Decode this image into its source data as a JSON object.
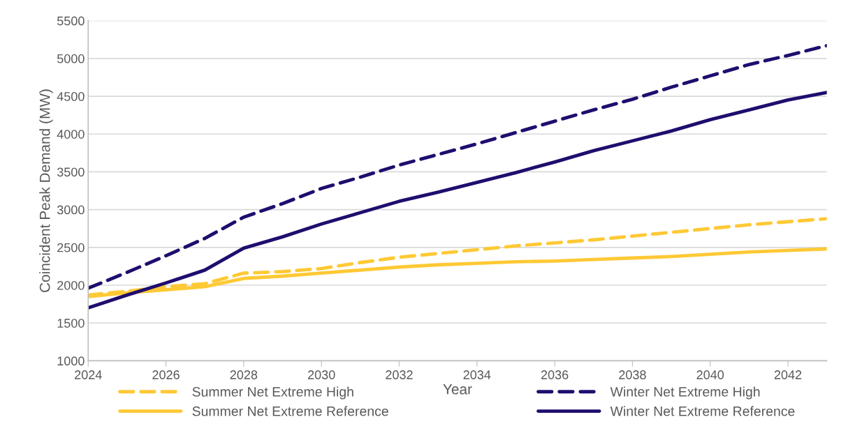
{
  "chart_data": {
    "type": "line",
    "xlabel": "Year",
    "ylabel": "Coincident Peak Demand (MW)",
    "x": [
      2024,
      2025,
      2026,
      2027,
      2028,
      2029,
      2030,
      2031,
      2032,
      2033,
      2034,
      2035,
      2036,
      2037,
      2038,
      2039,
      2040,
      2041,
      2042,
      2043
    ],
    "series": [
      {
        "name": "Summer Net Extreme High",
        "color": "#ffc935",
        "line_style": "dashed",
        "values": [
          1870,
          1920,
          1980,
          2020,
          2160,
          2180,
          2220,
          2300,
          2370,
          2420,
          2470,
          2520,
          2560,
          2600,
          2650,
          2700,
          2750,
          2800,
          2840,
          2880
        ]
      },
      {
        "name": "Summer Net Extreme Reference",
        "color": "#ffc935",
        "line_style": "solid",
        "values": [
          1850,
          1900,
          1940,
          1980,
          2090,
          2120,
          2160,
          2200,
          2240,
          2270,
          2290,
          2310,
          2320,
          2340,
          2360,
          2380,
          2410,
          2440,
          2460,
          2480
        ]
      },
      {
        "name": "Winter Net Extreme High",
        "color": "#200d6e",
        "line_style": "dashed",
        "values": [
          1960,
          2170,
          2390,
          2620,
          2900,
          3080,
          3280,
          3430,
          3590,
          3730,
          3870,
          4020,
          4170,
          4320,
          4460,
          4620,
          4770,
          4920,
          5040,
          5170
        ]
      },
      {
        "name": "Winter Net Extreme Reference",
        "color": "#200d6e",
        "line_style": "solid",
        "values": [
          1700,
          1870,
          2030,
          2200,
          2490,
          2640,
          2810,
          2960,
          3110,
          3230,
          3360,
          3490,
          3630,
          3780,
          3910,
          4040,
          4190,
          4320,
          4450,
          4550
        ]
      }
    ],
    "xlim": [
      2024,
      2043
    ],
    "xticks": [
      2024,
      2026,
      2028,
      2030,
      2032,
      2034,
      2036,
      2038,
      2040,
      2042
    ],
    "ylim": [
      1000,
      5500
    ],
    "yticks": [
      1000,
      1500,
      2000,
      2500,
      3000,
      3500,
      4000,
      4500,
      5000,
      5500
    ],
    "grid": "y",
    "legend": "bottom",
    "marker": "none"
  }
}
